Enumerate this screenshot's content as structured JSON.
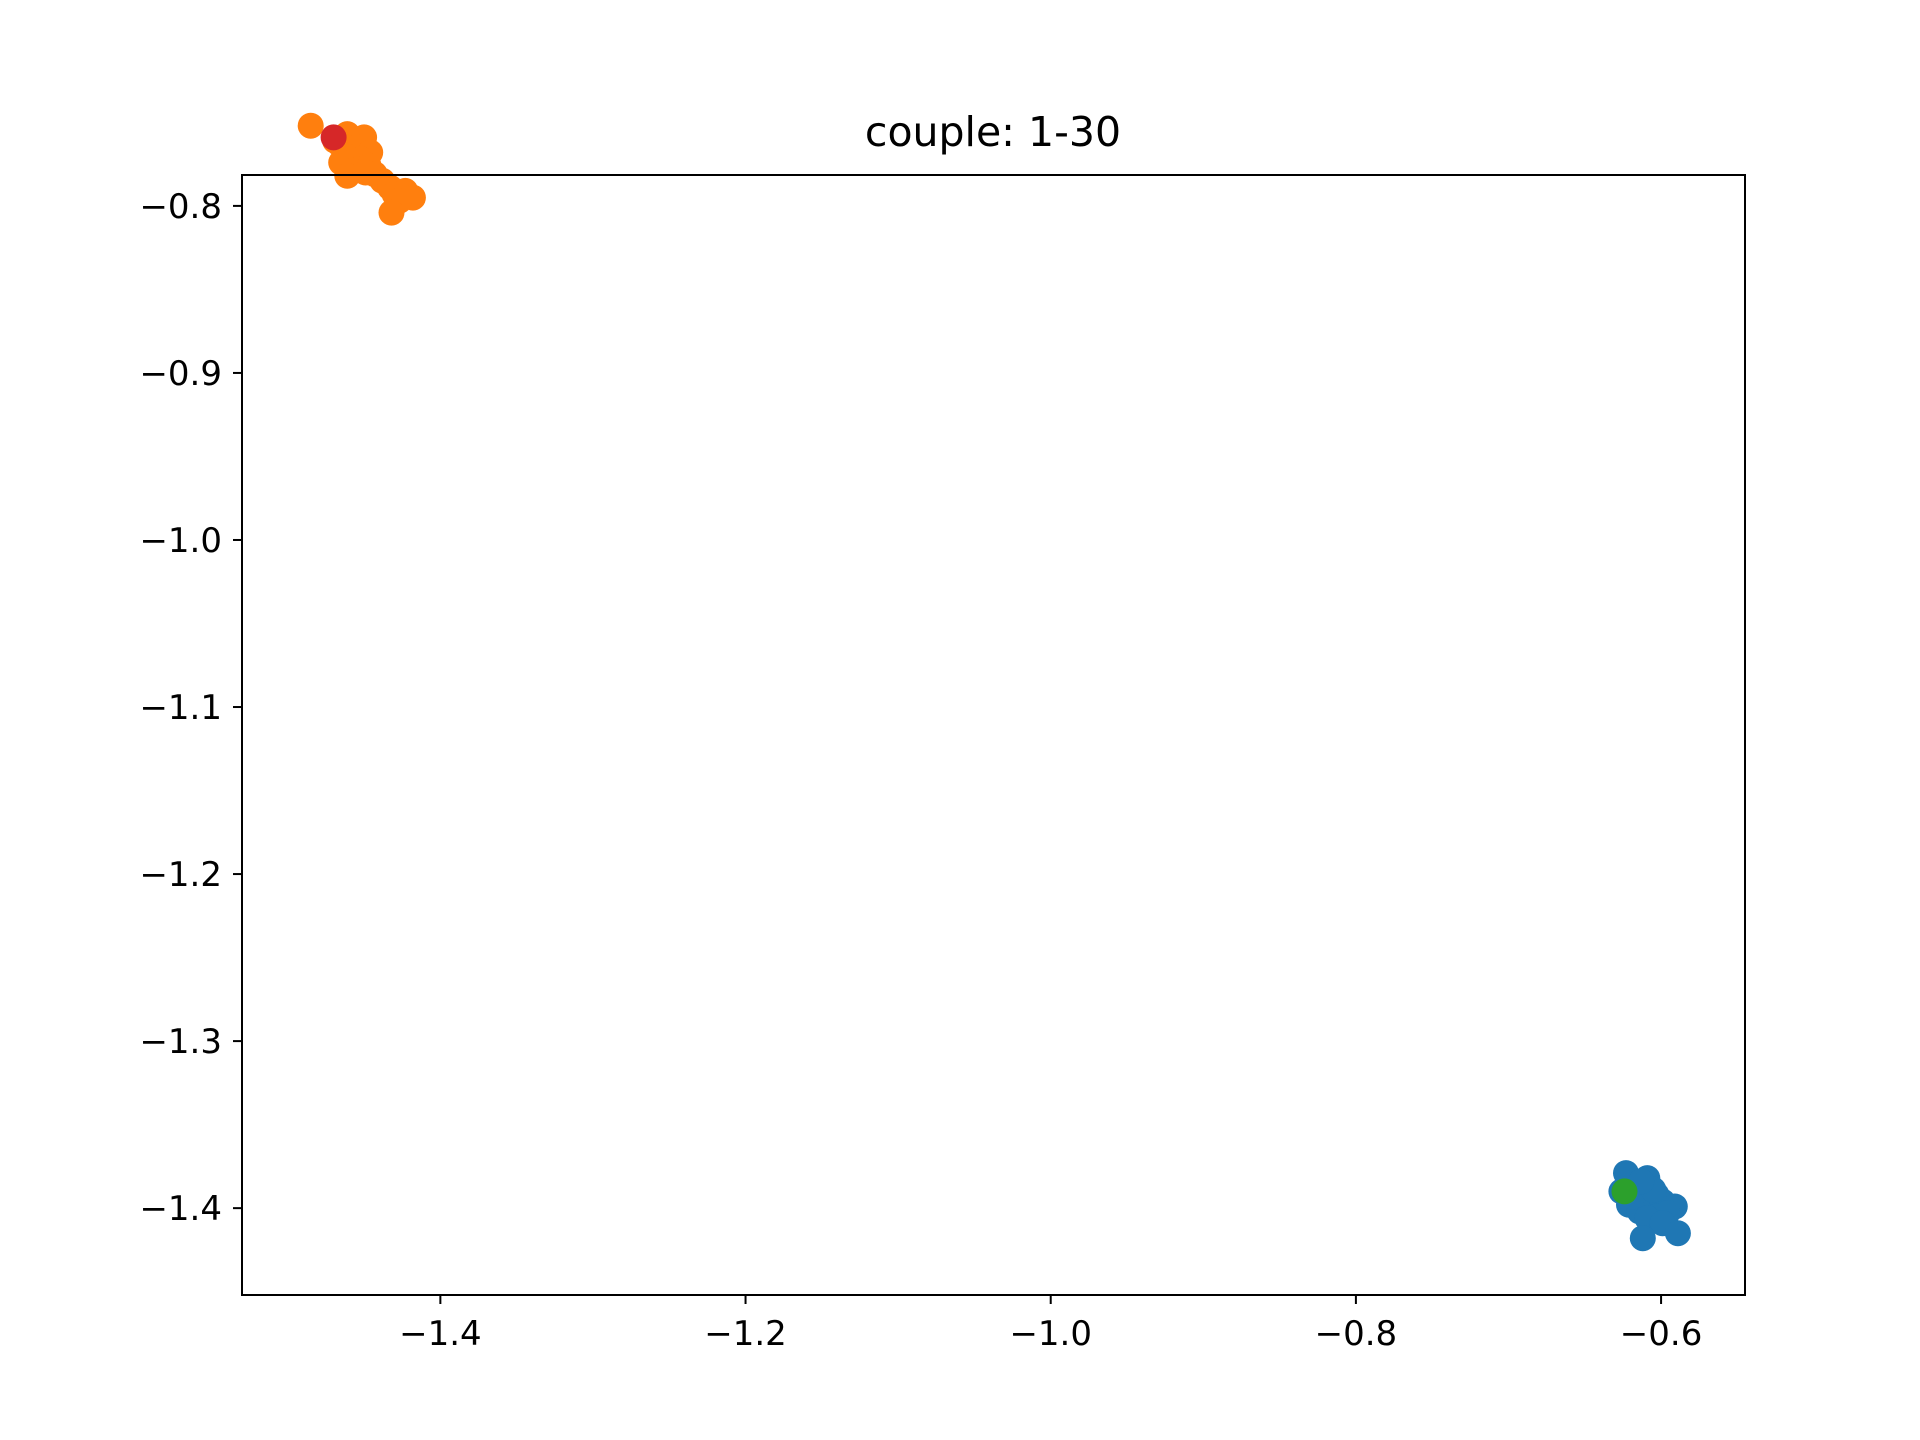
{
  "chart_data": {
    "type": "scatter",
    "title": "couple: 1-30",
    "xlabel": "",
    "ylabel": "",
    "xlim": [
      -1.53,
      -0.545
    ],
    "ylim": [
      -1.452,
      -0.7815
    ],
    "xticks": [
      {
        "value": -1.4,
        "label": "−1.4"
      },
      {
        "value": -1.2,
        "label": "−1.2"
      },
      {
        "value": -1.0,
        "label": "−1.0"
      },
      {
        "value": -0.8,
        "label": "−0.8"
      },
      {
        "value": -0.6,
        "label": "−0.6"
      }
    ],
    "yticks": [
      {
        "value": -0.8,
        "label": "−0.8"
      },
      {
        "value": -0.9,
        "label": "−0.9"
      },
      {
        "value": -1.0,
        "label": "−1.0"
      },
      {
        "value": -1.1,
        "label": "−1.1"
      },
      {
        "value": -1.2,
        "label": "−1.2"
      },
      {
        "value": -1.3,
        "label": "−1.3"
      },
      {
        "value": -1.4,
        "label": "−1.4"
      }
    ],
    "grid": false,
    "legend": "none",
    "series": [
      {
        "color": "#1f77b4",
        "points": [
          {
            "x": -0.623,
            "y": -1.379
          },
          {
            "x": -0.609,
            "y": -1.382
          },
          {
            "x": -0.626,
            "y": -1.39
          },
          {
            "x": -0.616,
            "y": -1.388
          },
          {
            "x": -0.603,
            "y": -1.392
          },
          {
            "x": -0.611,
            "y": -1.395
          },
          {
            "x": -0.621,
            "y": -1.398
          },
          {
            "x": -0.599,
            "y": -1.396
          },
          {
            "x": -0.607,
            "y": -1.4
          },
          {
            "x": -0.591,
            "y": -1.399
          },
          {
            "x": -0.614,
            "y": -1.402
          },
          {
            "x": -0.603,
            "y": -1.405
          },
          {
            "x": -0.596,
            "y": -1.403
          },
          {
            "x": -0.609,
            "y": -1.406
          },
          {
            "x": -0.599,
            "y": -1.409
          },
          {
            "x": -0.589,
            "y": -1.415
          },
          {
            "x": -0.612,
            "y": -1.418
          },
          {
            "x": -0.619,
            "y": -1.393
          },
          {
            "x": -0.605,
            "y": -1.389
          },
          {
            "x": -0.613,
            "y": -1.384
          }
        ]
      },
      {
        "color": "#ff7f0e",
        "points": [
          {
            "x": -1.485,
            "y": -0.752
          },
          {
            "x": -1.461,
            "y": -0.757
          },
          {
            "x": -1.45,
            "y": -0.759
          },
          {
            "x": -1.466,
            "y": -0.763
          },
          {
            "x": -1.455,
            "y": -0.765
          },
          {
            "x": -1.446,
            "y": -0.768
          },
          {
            "x": -1.462,
            "y": -0.77
          },
          {
            "x": -1.452,
            "y": -0.772
          },
          {
            "x": -1.465,
            "y": -0.774
          },
          {
            "x": -1.447,
            "y": -0.776
          },
          {
            "x": -1.458,
            "y": -0.779
          },
          {
            "x": -1.443,
            "y": -0.781
          },
          {
            "x": -1.461,
            "y": -0.782
          },
          {
            "x": -1.449,
            "y": -0.78
          },
          {
            "x": -1.438,
            "y": -0.785
          },
          {
            "x": -1.433,
            "y": -0.789
          },
          {
            "x": -1.43,
            "y": -0.793
          },
          {
            "x": -1.423,
            "y": -0.791
          },
          {
            "x": -1.418,
            "y": -0.795
          },
          {
            "x": -1.427,
            "y": -0.797
          },
          {
            "x": -1.432,
            "y": -0.804
          },
          {
            "x": -1.469,
            "y": -0.761
          }
        ]
      },
      {
        "color": "#d62728",
        "points": [
          {
            "x": -1.47,
            "y": -0.759
          }
        ]
      },
      {
        "color": "#2ca02c",
        "points": [
          {
            "x": -0.624,
            "y": -1.39
          }
        ]
      }
    ]
  }
}
